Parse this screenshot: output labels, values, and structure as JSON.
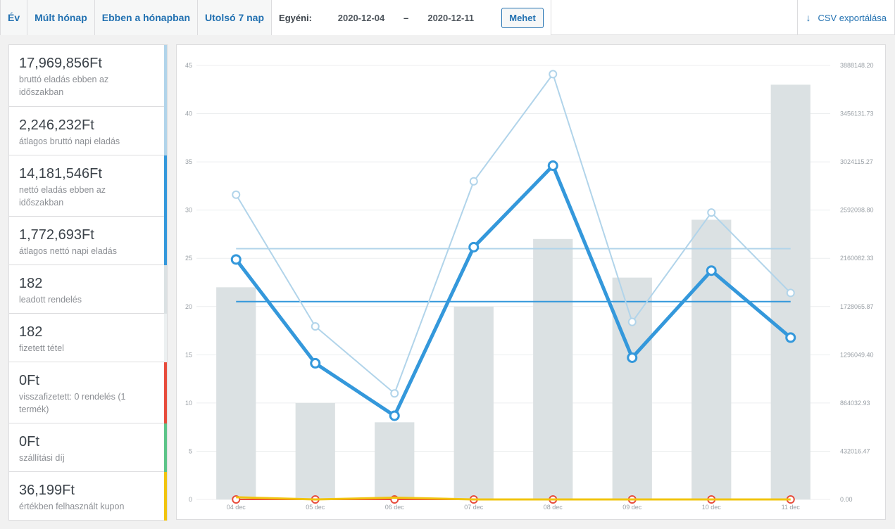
{
  "tabs": [
    {
      "label": "Év"
    },
    {
      "label": "Múlt hónap"
    },
    {
      "label": "Ebben a hónapban"
    },
    {
      "label": "Utolsó 7 nap"
    }
  ],
  "custom_range": {
    "label": "Egyéni:",
    "start": "2020-12-04",
    "separator": "–",
    "end": "2020-12-11",
    "go_label": "Mehet"
  },
  "export": {
    "icon": "download-arrow-icon",
    "label": "CSV exportálása"
  },
  "stats": [
    {
      "value": "17,969,856Ft",
      "label": "bruttó eladás ebben az időszakban",
      "color": "#b1d4ea"
    },
    {
      "value": "2,246,232Ft",
      "label": "átlagos bruttó napi eladás",
      "color": "#b1d4ea"
    },
    {
      "value": "14,181,546Ft",
      "label": "nettó eladás ebben az időszakban",
      "color": "#3498db"
    },
    {
      "value": "1,772,693Ft",
      "label": "átlagos nettó napi eladás",
      "color": "#3498db"
    },
    {
      "value": "182",
      "label": "leadott rendelés",
      "color": "#dbe1e3"
    },
    {
      "value": "182",
      "label": "fizetett tétel",
      "color": "#ecf0f1"
    },
    {
      "value": "0Ft",
      "label": "visszafizetett: 0 rendelés (1 termék)",
      "color": "#e74c3c"
    },
    {
      "value": "0Ft",
      "label": "szállítási díj",
      "color": "#5cc488"
    },
    {
      "value": "36,199Ft",
      "label": "értékben felhasznált kupon",
      "color": "#f1c40f"
    }
  ],
  "chart_data": {
    "type": "bar",
    "categories": [
      "04 dec",
      "05 dec",
      "06 dec",
      "07 dec",
      "08 dec",
      "09 dec",
      "10 dec",
      "11 dec"
    ],
    "y_left_ticks": [
      "0",
      "5",
      "10",
      "15",
      "20",
      "25",
      "30",
      "35",
      "40",
      "45"
    ],
    "y_left_range": [
      0,
      45
    ],
    "y_right_ticks": [
      "0.00",
      "432016.47",
      "864032.93",
      "1296049.40",
      "1728065.87",
      "2160082.33",
      "2592098.80",
      "3024115.27",
      "3456131.73",
      "3888148.20"
    ],
    "y_right_range": [
      0,
      3888148.2
    ],
    "grid": true,
    "bars": {
      "axis": "left",
      "color": "#dbe1e3",
      "values": [
        22,
        10,
        8,
        20,
        27,
        23,
        29,
        43
      ]
    },
    "series": [
      {
        "axis": "right",
        "color": "#b1d4ea",
        "width": 2,
        "values": [
          2730000,
          1550000,
          950000,
          2850000,
          3810000,
          1590000,
          2570000,
          1850000
        ]
      },
      {
        "axis": "right",
        "color": "#3498db",
        "width": 5,
        "values": [
          2150000,
          1220000,
          750000,
          2260000,
          2990000,
          1270000,
          2050000,
          1450000
        ]
      },
      {
        "axis": "right",
        "color": "#e74c3c",
        "width": 2,
        "values": [
          0,
          0,
          0,
          0,
          0,
          0,
          0,
          0
        ]
      },
      {
        "axis": "right",
        "color": "#f1c40f",
        "width": 3,
        "values": [
          20000,
          0,
          16199,
          0,
          0,
          0,
          0,
          0
        ]
      }
    ],
    "averages": [
      {
        "axis": "right",
        "color": "#b1d4ea",
        "value": 2246232
      },
      {
        "axis": "right",
        "color": "#3498db",
        "value": 1772693
      }
    ]
  }
}
